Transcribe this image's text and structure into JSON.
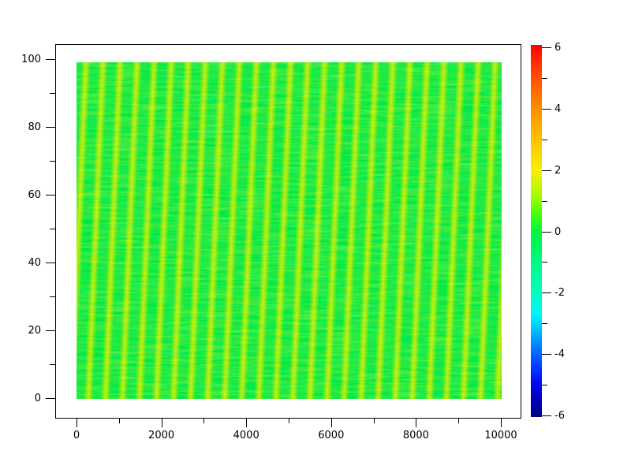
{
  "figure": {
    "background_color": "#FFFFFF",
    "axis_line_color": "#000000",
    "tick_label_color": "#000000"
  },
  "chart_data": {
    "type": "heatmap",
    "title": "",
    "xlabel": "",
    "ylabel": "",
    "xlim": [
      0,
      10000
    ],
    "ylim": [
      0,
      100
    ],
    "zlim": [
      -6,
      6
    ],
    "grid": false,
    "x_major_ticks": [
      0,
      2000,
      4000,
      6000,
      8000,
      10000
    ],
    "x_major_tick_labels": [
      "0",
      "2000",
      "4000",
      "6000",
      "8000",
      "10000"
    ],
    "x_minor_ticks": [
      1000,
      3000,
      5000,
      7000,
      9000
    ],
    "y_major_ticks": [
      0,
      20,
      40,
      60,
      80,
      100
    ],
    "y_major_tick_labels": [
      "0",
      "20",
      "40",
      "60",
      "80",
      "100"
    ],
    "y_minor_ticks": [
      10,
      30,
      50,
      70,
      90
    ],
    "colorbar": {
      "position": "right",
      "major_ticks": [
        6,
        4,
        2,
        0,
        -2,
        -4,
        -6
      ],
      "major_tick_labels": [
        "6",
        "4",
        "2",
        "0",
        "-2",
        "-4",
        "-6"
      ],
      "minor_ticks": [
        5,
        3,
        1,
        -1,
        -3,
        -5
      ],
      "colormap": "jet",
      "gradient_stops_top_to_bottom": [
        {
          "offset_pct": 0,
          "value": 6,
          "color": "#FA0000"
        },
        {
          "offset_pct": 4,
          "value": 5.5,
          "color": "#FF2600"
        },
        {
          "offset_pct": 9,
          "value": 5,
          "color": "#FF5200"
        },
        {
          "offset_pct": 17,
          "value": 4,
          "color": "#FF8C00"
        },
        {
          "offset_pct": 25,
          "value": 3,
          "color": "#FFBE00"
        },
        {
          "offset_pct": 33.5,
          "value": 2,
          "color": "#F8EE00"
        },
        {
          "offset_pct": 38,
          "value": 1.5,
          "color": "#C8F600"
        },
        {
          "offset_pct": 42,
          "value": 1,
          "color": "#8CFF00"
        },
        {
          "offset_pct": 46,
          "value": 0.5,
          "color": "#3CFF14"
        },
        {
          "offset_pct": 50,
          "value": 0,
          "color": "#0AF53C"
        },
        {
          "offset_pct": 54,
          "value": -0.5,
          "color": "#00F45C"
        },
        {
          "offset_pct": 58.5,
          "value": -1,
          "color": "#00FA86"
        },
        {
          "offset_pct": 66.5,
          "value": -2,
          "color": "#00FFC0"
        },
        {
          "offset_pct": 72,
          "value": -2.7,
          "color": "#00F8F8"
        },
        {
          "offset_pct": 76,
          "value": -3.2,
          "color": "#00C8FF"
        },
        {
          "offset_pct": 83,
          "value": -4,
          "color": "#0064FF"
        },
        {
          "offset_pct": 88,
          "value": -4.6,
          "color": "#0028FF"
        },
        {
          "offset_pct": 91,
          "value": -5,
          "color": "#0008F0"
        },
        {
          "offset_pct": 96,
          "value": -5.6,
          "color": "#0000B4"
        },
        {
          "offset_pct": 100,
          "value": -6,
          "color": "#000080"
        }
      ]
    },
    "pattern": {
      "description": "Noisy field of ~25 diagonal yellow-green stripes on a bright green background; stripes lean right going upward by about one period over the full height; fine horizontal noise streaks throughout.",
      "stripe_count_across": 25,
      "stripe_period_x_units": 400,
      "stripe_lean_deg_from_vertical": 2.5,
      "background_value": 0,
      "stripe_peak_value": 1.8,
      "background_color": "#00E847",
      "stripe_color": "#AAE800",
      "stripe_highlight_color": "#D8F000"
    }
  }
}
